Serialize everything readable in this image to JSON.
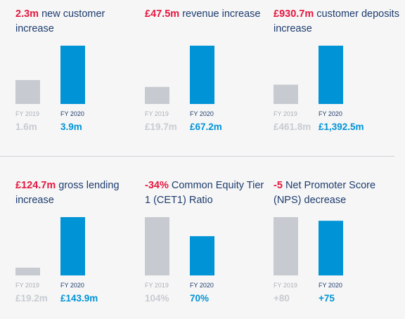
{
  "colors": {
    "highlight": "#e5173f",
    "text": "#1d3c6e",
    "fy2019": "#c7cbd1",
    "fy2020": "#0093d6",
    "divider": "#cfd3d8"
  },
  "chart_data": [
    {
      "type": "bar",
      "headline_value": "2.3m",
      "headline_text": "new customer increase",
      "categories": [
        "FY 2019",
        "FY 2020"
      ],
      "values": [
        1.6,
        3.9
      ],
      "value_labels": [
        "1.6m",
        "3.9m"
      ]
    },
    {
      "type": "bar",
      "headline_value": "£47.5m",
      "headline_text": "revenue increase",
      "categories": [
        "FY 2019",
        "FY 2020"
      ],
      "values": [
        19.7,
        67.2
      ],
      "value_labels": [
        "£19.7m",
        "£67.2m"
      ]
    },
    {
      "type": "bar",
      "headline_value": "£930.7m",
      "headline_text": "customer deposits increase",
      "categories": [
        "FY 2019",
        "FY 2020"
      ],
      "values": [
        461.8,
        1392.5
      ],
      "value_labels": [
        "£461.8m",
        "£1,392.5m"
      ]
    },
    {
      "type": "bar",
      "headline_value": "£124.7m",
      "headline_text": "gross lending increase",
      "categories": [
        "FY 2019",
        "FY 2020"
      ],
      "values": [
        19.2,
        143.9
      ],
      "value_labels": [
        "£19.2m",
        "£143.9m"
      ]
    },
    {
      "type": "bar",
      "headline_value": "-34%",
      "headline_text": "Common Equity Tier 1 (CET1) Ratio",
      "categories": [
        "FY 2019",
        "FY 2020"
      ],
      "values": [
        104,
        70
      ],
      "value_labels": [
        "104%",
        "70%"
      ]
    },
    {
      "type": "bar",
      "headline_value": "-5",
      "headline_text": "Net Promoter Score (NPS) decrease",
      "categories": [
        "FY 2019",
        "FY 2020"
      ],
      "values": [
        80,
        75
      ],
      "value_labels": [
        "+80",
        "+75"
      ]
    }
  ]
}
